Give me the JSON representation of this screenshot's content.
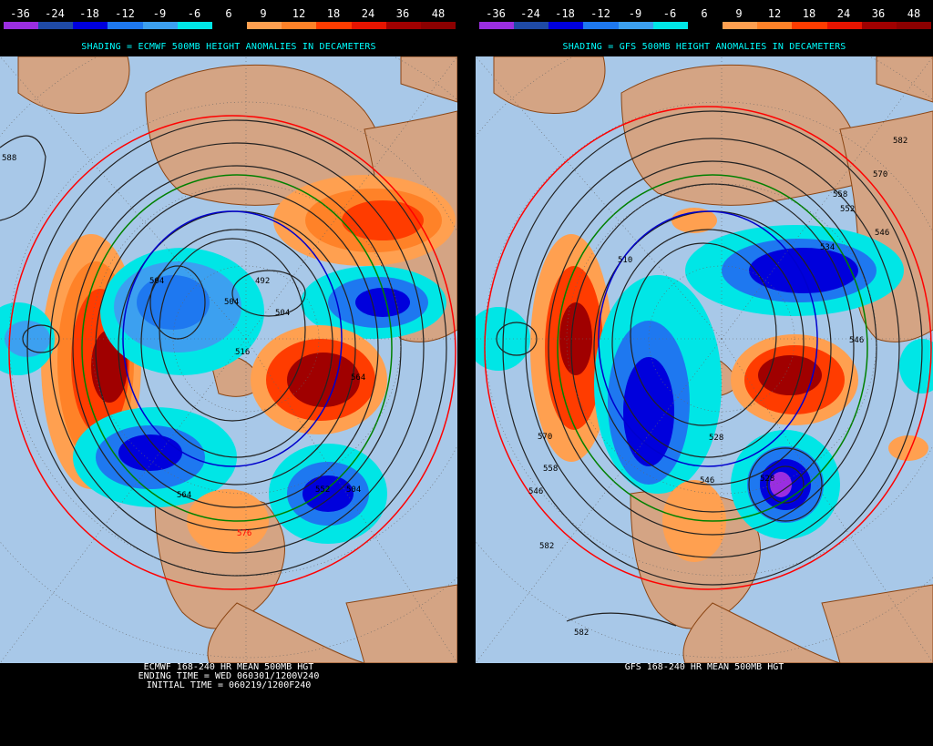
{
  "scale": {
    "labels": [
      "-36",
      "-24",
      "-18",
      "-12",
      "-9",
      "-6",
      "6",
      "9",
      "12",
      "18",
      "24",
      "36",
      "48"
    ],
    "colors": [
      "#9a2ee0",
      "#1f4aa5",
      "#0000dc",
      "#1e78f0",
      "#3ca0f0",
      "#00e6e6",
      "#000000",
      "#ffa050",
      "#ff8228",
      "#ff3c00",
      "#e61400",
      "#a00000",
      "#8c0000"
    ]
  },
  "colors": {
    "ocean": "#a8c8e8",
    "land": "#d4a484",
    "contour": "#222222",
    "coast": "#8b4513",
    "red_contour": "#ff0000",
    "green_contour": "#008000",
    "blue_contour": "#0000cc"
  },
  "left": {
    "subtitle": "SHADING = ECMWF 500MB HEIGHT ANOMALIES IN DECAMETERS",
    "caption": [
      "ECMWF 168-240 HR MEAN 500MB HGT",
      "ENDING TIME = WED 060301/1200V240",
      "INITIAL TIME = 060219/1200F240"
    ],
    "contour_labels": [
      "588",
      "504",
      "492",
      "504",
      "504",
      "516",
      "564",
      "564",
      "576",
      "552",
      "504"
    ]
  },
  "right": {
    "subtitle": "SHADING = GFS 500MB HEIGHT ANOMALIES IN DECAMETERS",
    "caption": [
      "GFS 168-240 HR MEAN 500MB HGT"
    ],
    "contour_labels": [
      "582",
      "570",
      "558",
      "552",
      "546",
      "534",
      "510",
      "570",
      "558",
      "546",
      "528",
      "528",
      "546",
      "582",
      "582",
      "546"
    ]
  }
}
